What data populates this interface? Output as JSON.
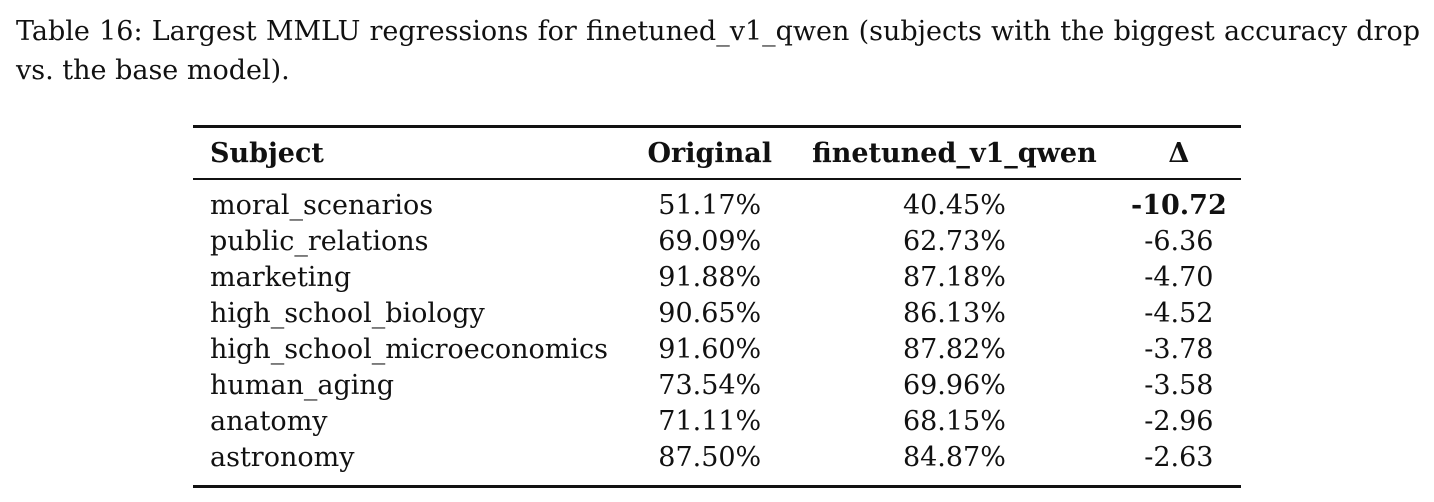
{
  "caption": "Table 16: Largest MMLU regressions for finetuned_v1_qwen (subjects with the biggest accuracy drop vs. the base model).",
  "table": {
    "headers": {
      "subject": "Subject",
      "original": "Original",
      "finetuned": "finetuned_v1_qwen",
      "delta": "Δ"
    },
    "rows": [
      {
        "subject": "moral_scenarios",
        "original": "51.17%",
        "finetuned": "40.45%",
        "delta": "-10.72",
        "highlight": true
      },
      {
        "subject": "public_relations",
        "original": "69.09%",
        "finetuned": "62.73%",
        "delta": "-6.36"
      },
      {
        "subject": "marketing",
        "original": "91.88%",
        "finetuned": "87.18%",
        "delta": "-4.70"
      },
      {
        "subject": "high_school_biology",
        "original": "90.65%",
        "finetuned": "86.13%",
        "delta": "-4.52"
      },
      {
        "subject": "high_school_microeconomics",
        "original": "91.60%",
        "finetuned": "87.82%",
        "delta": "-3.78"
      },
      {
        "subject": "human_aging",
        "original": "73.54%",
        "finetuned": "69.96%",
        "delta": "-3.58"
      },
      {
        "subject": "anatomy",
        "original": "71.11%",
        "finetuned": "68.15%",
        "delta": "-2.96"
      },
      {
        "subject": "astronomy",
        "original": "87.50%",
        "finetuned": "84.87%",
        "delta": "-2.63"
      }
    ]
  }
}
